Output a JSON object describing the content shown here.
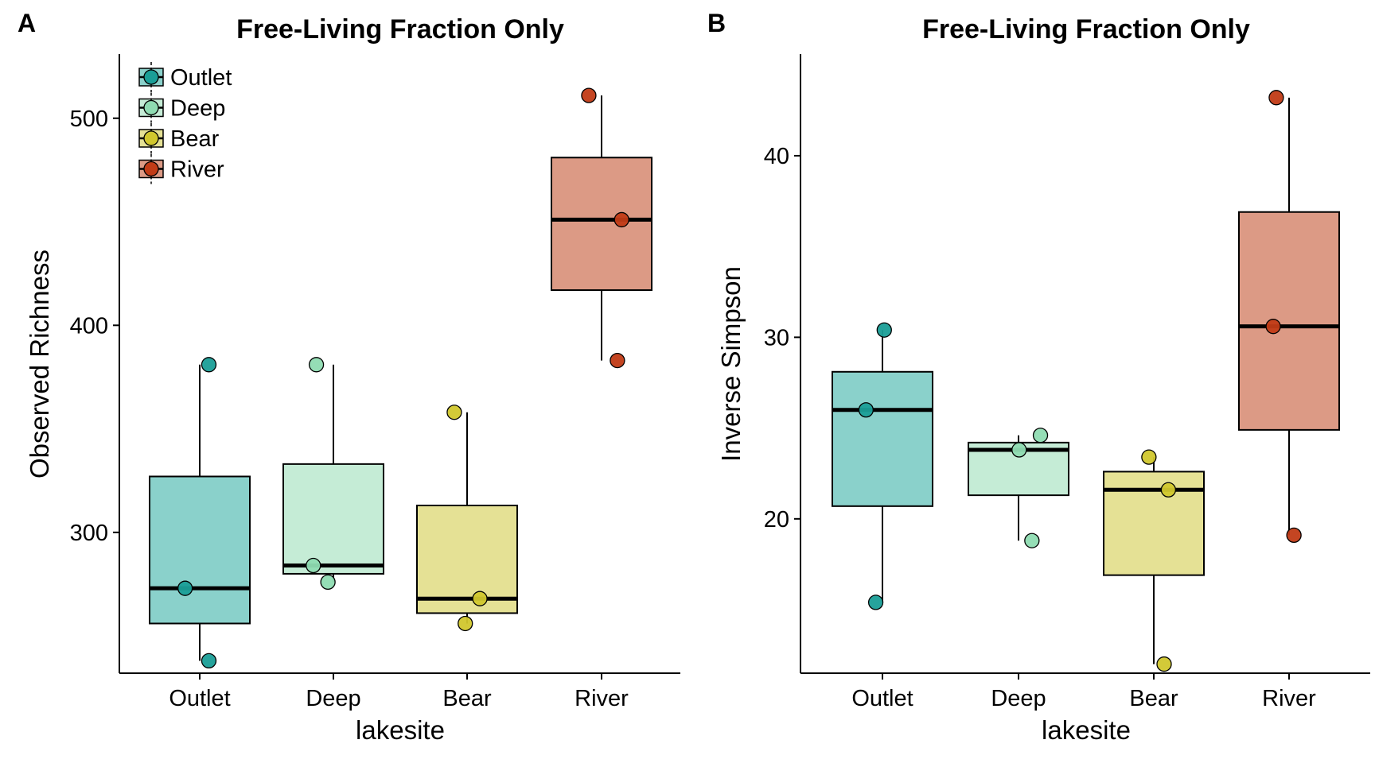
{
  "figure": {
    "panels": [
      {
        "letter": "A",
        "title": "Free-Living Fraction Only"
      },
      {
        "letter": "B",
        "title": "Free-Living Fraction Only"
      }
    ]
  },
  "legend": {
    "entries": [
      {
        "label": "Outlet",
        "fill": "#8ad1cb",
        "point": "#1a9e97"
      },
      {
        "label": "Deep",
        "fill": "#c5ecd6",
        "point": "#8fdcb2"
      },
      {
        "label": "Bear",
        "fill": "#e5e195",
        "point": "#d1c72d"
      },
      {
        "label": "River",
        "fill": "#dc9a85",
        "point": "#c13b16"
      }
    ]
  },
  "chart_data": [
    {
      "type": "box",
      "panel": "A",
      "title": "Free-Living Fraction Only",
      "xlabel": "lakesite",
      "ylabel": "Observed Richness",
      "categories": [
        "Outlet",
        "Deep",
        "Bear",
        "River"
      ],
      "ylim": [
        232,
        531
      ],
      "yticks": [
        300,
        400,
        500
      ],
      "grid": false,
      "legend_position": "top-left",
      "boxes": [
        {
          "category": "Outlet",
          "whisker_low": 238,
          "q1": 256,
          "median": 273,
          "q3": 327,
          "whisker_high": 381
        },
        {
          "category": "Deep",
          "whisker_low": 276,
          "q1": 280,
          "median": 284,
          "q3": 333,
          "whisker_high": 381
        },
        {
          "category": "Bear",
          "whisker_low": 256,
          "q1": 261,
          "median": 268,
          "q3": 313,
          "whisker_high": 358
        },
        {
          "category": "River",
          "whisker_low": 383,
          "q1": 417,
          "median": 451,
          "q3": 481,
          "whisker_high": 511
        }
      ],
      "points": [
        {
          "category": "Outlet",
          "x": 0.15,
          "y": 381
        },
        {
          "category": "Outlet",
          "x": -0.24,
          "y": 273
        },
        {
          "category": "Outlet",
          "x": 0.15,
          "y": 238
        },
        {
          "category": "Deep",
          "x": -0.28,
          "y": 381
        },
        {
          "category": "Deep",
          "x": -0.33,
          "y": 284
        },
        {
          "category": "Deep",
          "x": -0.09,
          "y": 276
        },
        {
          "category": "Bear",
          "x": -0.21,
          "y": 358
        },
        {
          "category": "Bear",
          "x": 0.21,
          "y": 268
        },
        {
          "category": "Bear",
          "x": -0.03,
          "y": 256
        },
        {
          "category": "River",
          "x": -0.21,
          "y": 511
        },
        {
          "category": "River",
          "x": 0.33,
          "y": 451
        },
        {
          "category": "River",
          "x": 0.26,
          "y": 383
        }
      ]
    },
    {
      "type": "box",
      "panel": "B",
      "title": "Free-Living Fraction Only",
      "xlabel": "lakesite",
      "ylabel": "Inverse Simpson",
      "categories": [
        "Outlet",
        "Deep",
        "Bear",
        "River"
      ],
      "ylim": [
        11.5,
        45.6
      ],
      "yticks": [
        20,
        30,
        40
      ],
      "grid": false,
      "boxes": [
        {
          "category": "Outlet",
          "whisker_low": 15.4,
          "q1": 20.7,
          "median": 26.0,
          "q3": 28.1,
          "whisker_high": 30.4
        },
        {
          "category": "Deep",
          "whisker_low": 18.8,
          "q1": 21.3,
          "median": 23.8,
          "q3": 24.2,
          "whisker_high": 24.6
        },
        {
          "category": "Bear",
          "whisker_low": 12.0,
          "q1": 16.9,
          "median": 21.6,
          "q3": 22.6,
          "whisker_high": 23.4
        },
        {
          "category": "River",
          "whisker_low": 19.1,
          "q1": 24.9,
          "median": 30.6,
          "q3": 36.9,
          "whisker_high": 43.2
        }
      ],
      "points": [
        {
          "category": "Outlet",
          "x": -0.27,
          "y": 26.0
        },
        {
          "category": "Outlet",
          "x": 0.03,
          "y": 30.4
        },
        {
          "category": "Outlet",
          "x": -0.11,
          "y": 15.4
        },
        {
          "category": "Deep",
          "x": 0.36,
          "y": 24.6
        },
        {
          "category": "Deep",
          "x": 0.01,
          "y": 23.8
        },
        {
          "category": "Deep",
          "x": 0.22,
          "y": 18.8
        },
        {
          "category": "Bear",
          "x": -0.08,
          "y": 23.4
        },
        {
          "category": "Bear",
          "x": 0.24,
          "y": 21.6
        },
        {
          "category": "Bear",
          "x": 0.17,
          "y": 12.0
        },
        {
          "category": "River",
          "x": -0.21,
          "y": 43.2
        },
        {
          "category": "River",
          "x": -0.26,
          "y": 30.6
        },
        {
          "category": "River",
          "x": 0.08,
          "y": 19.1
        }
      ]
    }
  ]
}
